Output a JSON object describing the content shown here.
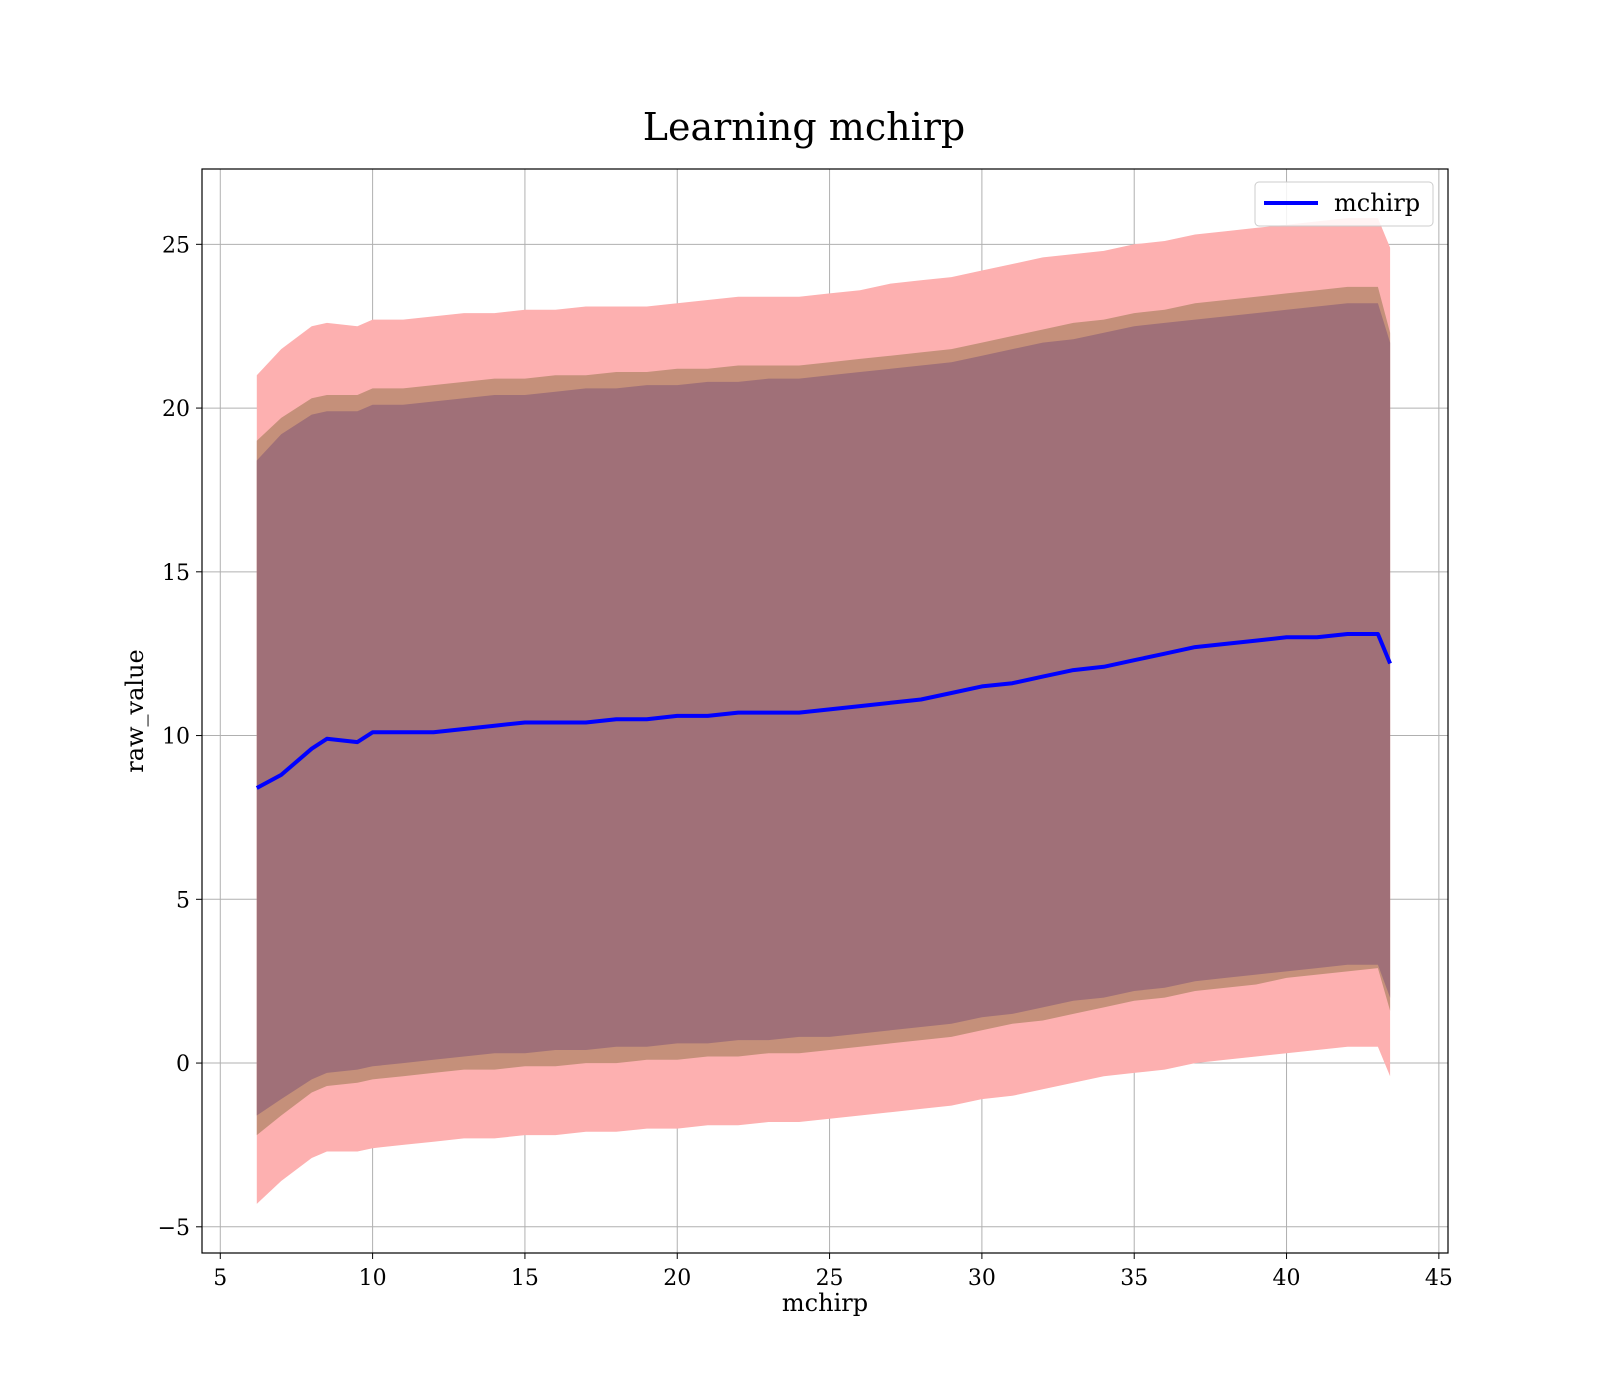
{
  "chart_data": {
    "type": "area",
    "title": "Learning mchirp",
    "xlabel": "mchirp",
    "ylabel": "raw_value",
    "xlim": [
      4.4,
      45.3
    ],
    "ylim": [
      -5.8,
      27.3
    ],
    "xticks": [
      "5",
      "10",
      "15",
      "20",
      "25",
      "30",
      "35",
      "40",
      "45"
    ],
    "xtick_values": [
      5,
      10,
      15,
      20,
      25,
      30,
      35,
      40,
      45
    ],
    "yticks": [
      "−5",
      "0",
      "5",
      "10",
      "15",
      "20",
      "25"
    ],
    "ytick_values": [
      -5,
      0,
      5,
      10,
      15,
      20,
      25
    ],
    "grid": true,
    "legend_position": "top-right",
    "colors": {
      "line": "#0000ff",
      "band_outer": "#fdb0b0",
      "band_middle": "#c5907a",
      "band_inner": "#a07078",
      "axes": "#000000",
      "grid": "#b0b0b0"
    },
    "x": [
      6.2,
      7.0,
      8.0,
      8.5,
      9.5,
      10.0,
      11.0,
      12.0,
      13.0,
      14.0,
      15.0,
      16.0,
      17.0,
      18.0,
      19.0,
      20.0,
      21.0,
      22.0,
      23.0,
      24.0,
      25.0,
      26.0,
      27.0,
      28.0,
      29.0,
      30.0,
      31.0,
      32.0,
      33.0,
      34.0,
      35.0,
      36.0,
      37.0,
      38.0,
      39.0,
      40.0,
      41.0,
      42.0,
      43.0,
      43.4
    ],
    "series": [
      {
        "name": "mchirp",
        "values": [
          8.4,
          8.8,
          9.6,
          9.9,
          9.8,
          10.1,
          10.1,
          10.1,
          10.2,
          10.3,
          10.4,
          10.4,
          10.4,
          10.5,
          10.5,
          10.6,
          10.6,
          10.7,
          10.7,
          10.7,
          10.8,
          10.9,
          11.0,
          11.1,
          11.3,
          11.5,
          11.6,
          11.8,
          12.0,
          12.1,
          12.3,
          12.5,
          12.7,
          12.8,
          12.9,
          13.0,
          13.0,
          13.1,
          13.1,
          12.2
        ]
      }
    ],
    "bands": [
      {
        "level": "outer",
        "upper": [
          21.0,
          21.8,
          22.5,
          22.6,
          22.5,
          22.7,
          22.7,
          22.8,
          22.9,
          22.9,
          23.0,
          23.0,
          23.1,
          23.1,
          23.1,
          23.2,
          23.3,
          23.4,
          23.4,
          23.4,
          23.5,
          23.6,
          23.8,
          23.9,
          24.0,
          24.2,
          24.4,
          24.6,
          24.7,
          24.8,
          25.0,
          25.1,
          25.3,
          25.4,
          25.5,
          25.6,
          25.7,
          25.8,
          25.8,
          24.9
        ],
        "lower": [
          -4.3,
          -3.6,
          -2.9,
          -2.7,
          -2.7,
          -2.6,
          -2.5,
          -2.4,
          -2.3,
          -2.3,
          -2.2,
          -2.2,
          -2.1,
          -2.1,
          -2.0,
          -2.0,
          -1.9,
          -1.9,
          -1.8,
          -1.8,
          -1.7,
          -1.6,
          -1.5,
          -1.4,
          -1.3,
          -1.1,
          -1.0,
          -0.8,
          -0.6,
          -0.4,
          -0.3,
          -0.2,
          0.0,
          0.1,
          0.2,
          0.3,
          0.4,
          0.5,
          0.5,
          -0.4
        ]
      },
      {
        "level": "middle",
        "upper": [
          19.0,
          19.7,
          20.3,
          20.4,
          20.4,
          20.6,
          20.6,
          20.7,
          20.8,
          20.9,
          20.9,
          21.0,
          21.0,
          21.1,
          21.1,
          21.2,
          21.2,
          21.3,
          21.3,
          21.3,
          21.4,
          21.5,
          21.6,
          21.7,
          21.8,
          22.0,
          22.2,
          22.4,
          22.6,
          22.7,
          22.9,
          23.0,
          23.2,
          23.3,
          23.4,
          23.5,
          23.6,
          23.7,
          23.7,
          22.3
        ],
        "lower": [
          -2.2,
          -1.6,
          -0.9,
          -0.7,
          -0.6,
          -0.5,
          -0.4,
          -0.3,
          -0.2,
          -0.2,
          -0.1,
          -0.1,
          0.0,
          0.0,
          0.1,
          0.1,
          0.2,
          0.2,
          0.3,
          0.3,
          0.4,
          0.5,
          0.6,
          0.7,
          0.8,
          1.0,
          1.2,
          1.3,
          1.5,
          1.7,
          1.9,
          2.0,
          2.2,
          2.3,
          2.4,
          2.6,
          2.7,
          2.8,
          2.9,
          1.6
        ]
      },
      {
        "level": "inner",
        "upper": [
          18.4,
          19.2,
          19.8,
          19.9,
          19.9,
          20.1,
          20.1,
          20.2,
          20.3,
          20.4,
          20.4,
          20.5,
          20.6,
          20.6,
          20.7,
          20.7,
          20.8,
          20.8,
          20.9,
          20.9,
          21.0,
          21.1,
          21.2,
          21.3,
          21.4,
          21.6,
          21.8,
          22.0,
          22.1,
          22.3,
          22.5,
          22.6,
          22.7,
          22.8,
          22.9,
          23.0,
          23.1,
          23.2,
          23.2,
          22.0
        ],
        "lower": [
          -1.6,
          -1.1,
          -0.5,
          -0.3,
          -0.2,
          -0.1,
          0.0,
          0.1,
          0.2,
          0.3,
          0.3,
          0.4,
          0.4,
          0.5,
          0.5,
          0.6,
          0.6,
          0.7,
          0.7,
          0.8,
          0.8,
          0.9,
          1.0,
          1.1,
          1.2,
          1.4,
          1.5,
          1.7,
          1.9,
          2.0,
          2.2,
          2.3,
          2.5,
          2.6,
          2.7,
          2.8,
          2.9,
          3.0,
          3.0,
          2.0
        ]
      }
    ]
  }
}
